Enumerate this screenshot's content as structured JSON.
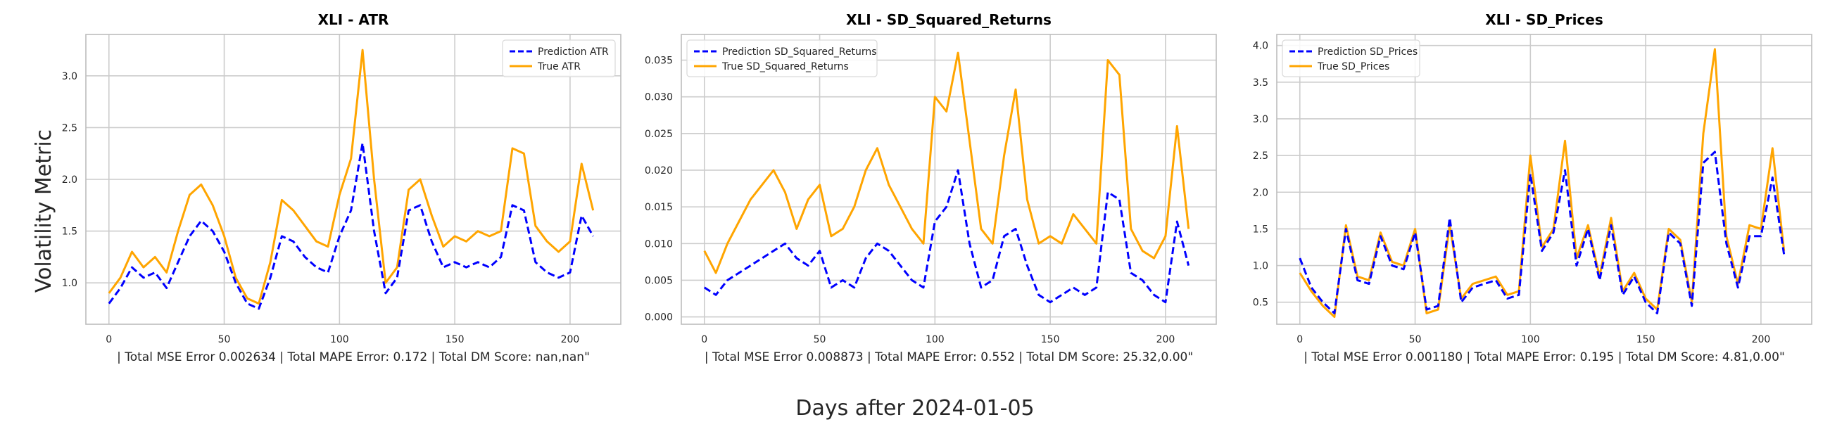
{
  "figure": {
    "ylabel": "Volatility Metric",
    "xlabel": "Days after 2024-01-05",
    "pred_color": "#0000ff",
    "true_color": "#ffa500"
  },
  "chart_data": [
    {
      "type": "line",
      "title": "XLI - ATR",
      "xlabel": "| Total MSE Error 0.002634 | Total MAPE Error: 0.172 | Total DM Score: nan,nan\"",
      "xlim": [
        -10,
        222
      ],
      "ylim": [
        0.6,
        3.4
      ],
      "xticks": [
        0,
        50,
        100,
        150,
        200
      ],
      "yticks": [
        1.0,
        1.5,
        2.0,
        2.5,
        3.0
      ],
      "ytick_labels": [
        "1.0",
        "1.5",
        "2.0",
        "2.5",
        "3.0"
      ],
      "grid": true,
      "legend_position": "top-right",
      "series": [
        {
          "name": "Prediction ATR",
          "style": "dashed",
          "x": [
            0,
            5,
            10,
            15,
            20,
            25,
            30,
            35,
            40,
            45,
            50,
            55,
            60,
            65,
            70,
            75,
            80,
            85,
            90,
            95,
            100,
            105,
            110,
            115,
            120,
            125,
            130,
            135,
            140,
            145,
            150,
            155,
            160,
            165,
            170,
            175,
            180,
            185,
            190,
            195,
            200,
            205,
            210
          ],
          "y": [
            0.8,
            0.95,
            1.15,
            1.05,
            1.1,
            0.95,
            1.2,
            1.45,
            1.6,
            1.5,
            1.3,
            1.0,
            0.8,
            0.75,
            1.05,
            1.45,
            1.4,
            1.25,
            1.15,
            1.1,
            1.45,
            1.7,
            2.35,
            1.5,
            0.9,
            1.05,
            1.7,
            1.75,
            1.4,
            1.15,
            1.2,
            1.15,
            1.2,
            1.15,
            1.25,
            1.75,
            1.7,
            1.2,
            1.1,
            1.05,
            1.1,
            1.65,
            1.45
          ]
        },
        {
          "name": "True ATR",
          "style": "solid",
          "x": [
            0,
            5,
            10,
            15,
            20,
            25,
            30,
            35,
            40,
            45,
            50,
            55,
            60,
            65,
            70,
            75,
            80,
            85,
            90,
            95,
            100,
            105,
            110,
            115,
            120,
            125,
            130,
            135,
            140,
            145,
            150,
            155,
            160,
            165,
            170,
            175,
            180,
            185,
            190,
            195,
            200,
            205,
            210
          ],
          "y": [
            0.9,
            1.05,
            1.3,
            1.15,
            1.25,
            1.1,
            1.5,
            1.85,
            1.95,
            1.75,
            1.45,
            1.05,
            0.85,
            0.8,
            1.2,
            1.8,
            1.7,
            1.55,
            1.4,
            1.35,
            1.85,
            2.2,
            3.25,
            2.0,
            1.0,
            1.15,
            1.9,
            2.0,
            1.65,
            1.35,
            1.45,
            1.4,
            1.5,
            1.45,
            1.5,
            2.3,
            2.25,
            1.55,
            1.4,
            1.3,
            1.4,
            2.15,
            1.7
          ]
        }
      ]
    },
    {
      "type": "line",
      "title": "XLI - SD_Squared_Returns",
      "xlabel": "| Total MSE Error 0.008873 | Total MAPE Error: 0.552 | Total DM Score: 25.32,0.00\"",
      "xlim": [
        -10,
        222
      ],
      "ylim": [
        -0.001,
        0.0385
      ],
      "xticks": [
        0,
        50,
        100,
        150,
        200
      ],
      "yticks": [
        0.0,
        0.005,
        0.01,
        0.015,
        0.02,
        0.025,
        0.03,
        0.035
      ],
      "ytick_labels": [
        "0.000",
        "0.005",
        "0.010",
        "0.015",
        "0.020",
        "0.025",
        "0.030",
        "0.035"
      ],
      "grid": true,
      "legend_position": "top-left",
      "series": [
        {
          "name": "Prediction SD_Squared_Returns",
          "style": "dashed",
          "x": [
            0,
            5,
            10,
            15,
            20,
            25,
            30,
            35,
            40,
            45,
            50,
            55,
            60,
            65,
            70,
            75,
            80,
            85,
            90,
            95,
            100,
            105,
            110,
            115,
            120,
            125,
            130,
            135,
            140,
            145,
            150,
            155,
            160,
            165,
            170,
            175,
            180,
            185,
            190,
            195,
            200,
            205,
            210
          ],
          "y": [
            0.004,
            0.003,
            0.005,
            0.006,
            0.007,
            0.008,
            0.009,
            0.01,
            0.008,
            0.007,
            0.009,
            0.004,
            0.005,
            0.004,
            0.008,
            0.01,
            0.009,
            0.007,
            0.005,
            0.004,
            0.013,
            0.015,
            0.02,
            0.01,
            0.004,
            0.005,
            0.011,
            0.012,
            0.007,
            0.003,
            0.002,
            0.003,
            0.004,
            0.003,
            0.004,
            0.017,
            0.016,
            0.006,
            0.005,
            0.003,
            0.002,
            0.013,
            0.007
          ]
        },
        {
          "name": "True SD_Squared_Returns",
          "style": "solid",
          "x": [
            0,
            5,
            10,
            15,
            20,
            25,
            30,
            35,
            40,
            45,
            50,
            55,
            60,
            65,
            70,
            75,
            80,
            85,
            90,
            95,
            100,
            105,
            110,
            115,
            120,
            125,
            130,
            135,
            140,
            145,
            150,
            155,
            160,
            165,
            170,
            175,
            180,
            185,
            190,
            195,
            200,
            205,
            210
          ],
          "y": [
            0.009,
            0.006,
            0.01,
            0.013,
            0.016,
            0.018,
            0.02,
            0.017,
            0.012,
            0.016,
            0.018,
            0.011,
            0.012,
            0.015,
            0.02,
            0.023,
            0.018,
            0.015,
            0.012,
            0.01,
            0.03,
            0.028,
            0.036,
            0.024,
            0.012,
            0.01,
            0.022,
            0.031,
            0.016,
            0.01,
            0.011,
            0.01,
            0.014,
            0.012,
            0.01,
            0.035,
            0.033,
            0.012,
            0.009,
            0.008,
            0.011,
            0.026,
            0.012
          ]
        }
      ]
    },
    {
      "type": "line",
      "title": "XLI - SD_Prices",
      "xlabel": "| Total MSE Error 0.001180 | Total MAPE Error: 0.195 | Total DM Score: 4.81,0.00\"",
      "xlim": [
        -10,
        222
      ],
      "ylim": [
        0.2,
        4.15
      ],
      "xticks": [
        0,
        50,
        100,
        150,
        200
      ],
      "yticks": [
        0.5,
        1.0,
        1.5,
        2.0,
        2.5,
        3.0,
        3.5,
        4.0
      ],
      "ytick_labels": [
        "0.5",
        "1.0",
        "1.5",
        "2.0",
        "2.5",
        "3.0",
        "3.5",
        "4.0"
      ],
      "grid": true,
      "legend_position": "top-left",
      "series": [
        {
          "name": "Prediction SD_Prices",
          "style": "dashed",
          "x": [
            0,
            5,
            10,
            15,
            20,
            25,
            30,
            35,
            40,
            45,
            50,
            55,
            60,
            65,
            70,
            75,
            80,
            85,
            90,
            95,
            100,
            105,
            110,
            115,
            120,
            125,
            130,
            135,
            140,
            145,
            150,
            155,
            160,
            165,
            170,
            175,
            180,
            185,
            190,
            195,
            200,
            205,
            210
          ],
          "y": [
            1.1,
            0.7,
            0.5,
            0.35,
            1.5,
            0.8,
            0.75,
            1.4,
            1.0,
            0.95,
            1.45,
            0.4,
            0.45,
            1.65,
            0.5,
            0.7,
            0.75,
            0.8,
            0.55,
            0.6,
            2.25,
            1.2,
            1.45,
            2.3,
            1.0,
            1.5,
            0.8,
            1.55,
            0.6,
            0.85,
            0.5,
            0.35,
            1.45,
            1.3,
            0.45,
            2.4,
            2.55,
            1.3,
            0.7,
            1.4,
            1.4,
            2.2,
            1.15
          ]
        },
        {
          "name": "True SD_Prices",
          "style": "solid",
          "x": [
            0,
            5,
            10,
            15,
            20,
            25,
            30,
            35,
            40,
            45,
            50,
            55,
            60,
            65,
            70,
            75,
            80,
            85,
            90,
            95,
            100,
            105,
            110,
            115,
            120,
            125,
            130,
            135,
            140,
            145,
            150,
            155,
            160,
            165,
            170,
            175,
            180,
            185,
            190,
            195,
            200,
            205,
            210
          ],
          "y": [
            0.9,
            0.65,
            0.45,
            0.3,
            1.55,
            0.85,
            0.8,
            1.45,
            1.05,
            1.0,
            1.5,
            0.35,
            0.4,
            1.55,
            0.55,
            0.75,
            0.8,
            0.85,
            0.6,
            0.65,
            2.5,
            1.25,
            1.5,
            2.7,
            1.1,
            1.55,
            0.85,
            1.65,
            0.65,
            0.9,
            0.55,
            0.4,
            1.5,
            1.35,
            0.5,
            2.8,
            3.95,
            1.4,
            0.75,
            1.55,
            1.5,
            2.6,
            1.2
          ]
        }
      ]
    }
  ]
}
